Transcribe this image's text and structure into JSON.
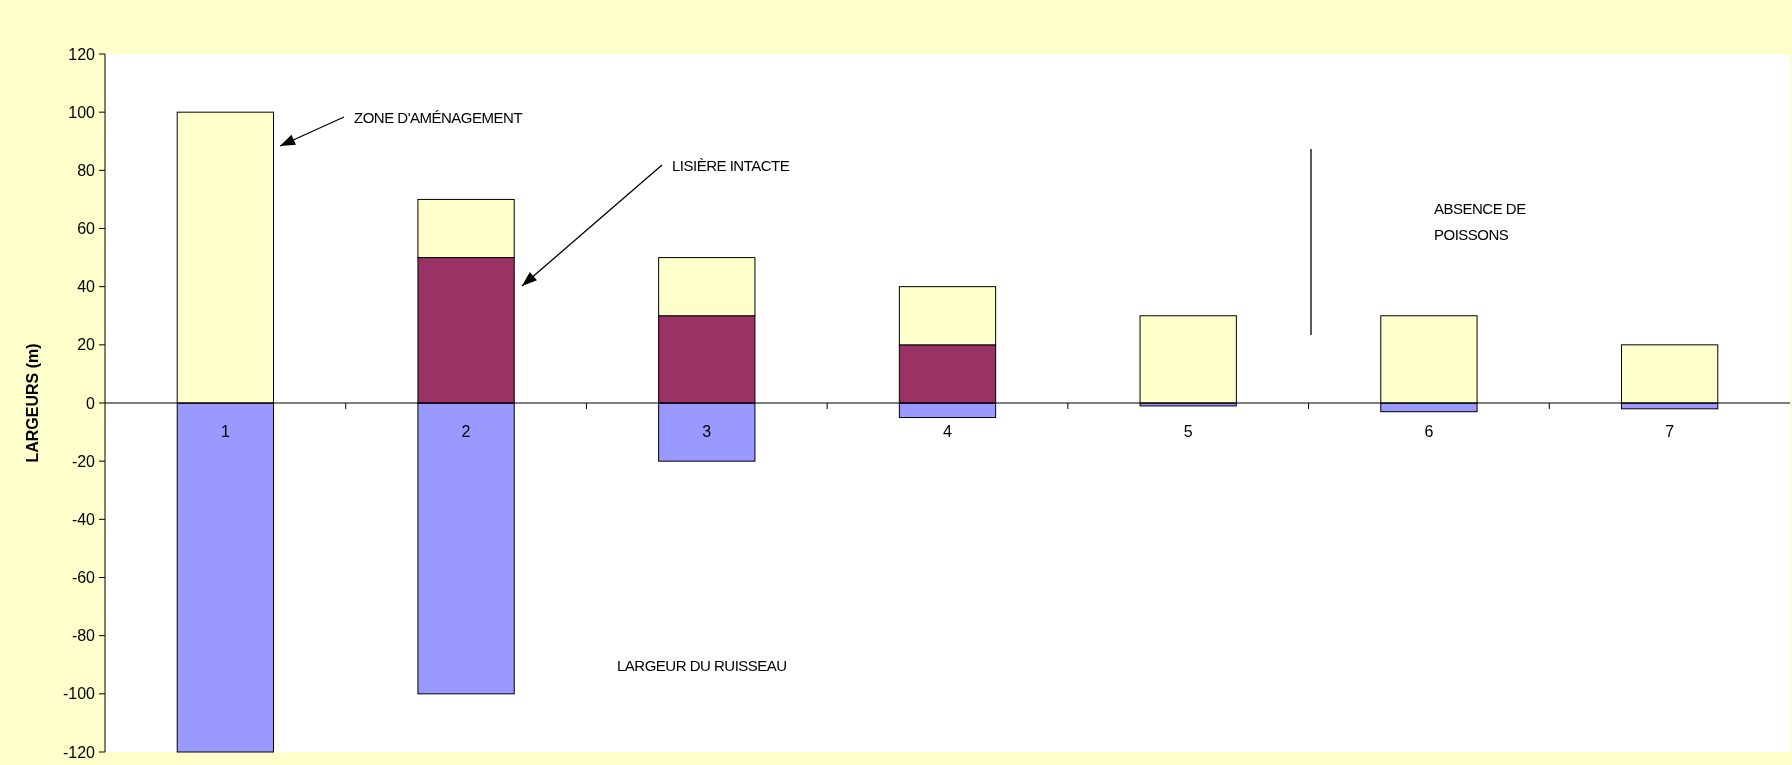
{
  "chart_data": {
    "type": "bar",
    "stacked": true,
    "ylabel": "LARGEURS (m)",
    "categories": [
      "1",
      "2",
      "3",
      "4",
      "5",
      "6",
      "7"
    ],
    "series": [
      {
        "color": "#9999ff",
        "values": [
          -120,
          -100,
          -20,
          -5,
          -1,
          -3,
          -2
        ]
      },
      {
        "color": "#993366",
        "values": [
          0,
          50,
          30,
          20,
          0,
          0,
          0
        ]
      },
      {
        "color": "#ffffcc",
        "values": [
          100,
          20,
          20,
          20,
          30,
          30,
          20
        ]
      }
    ],
    "ylim": [
      -120,
      120
    ],
    "yticks": [
      -120,
      -100,
      -80,
      -60,
      -40,
      -20,
      0,
      20,
      40,
      60,
      80,
      100,
      120
    ],
    "annotations": [
      "ZONE D'AMÉNAGEMENT",
      "LISIÈRE INTACTE",
      "LARGEUR DU RUISSEAU",
      "ABSENCE DE POISSONS"
    ]
  }
}
